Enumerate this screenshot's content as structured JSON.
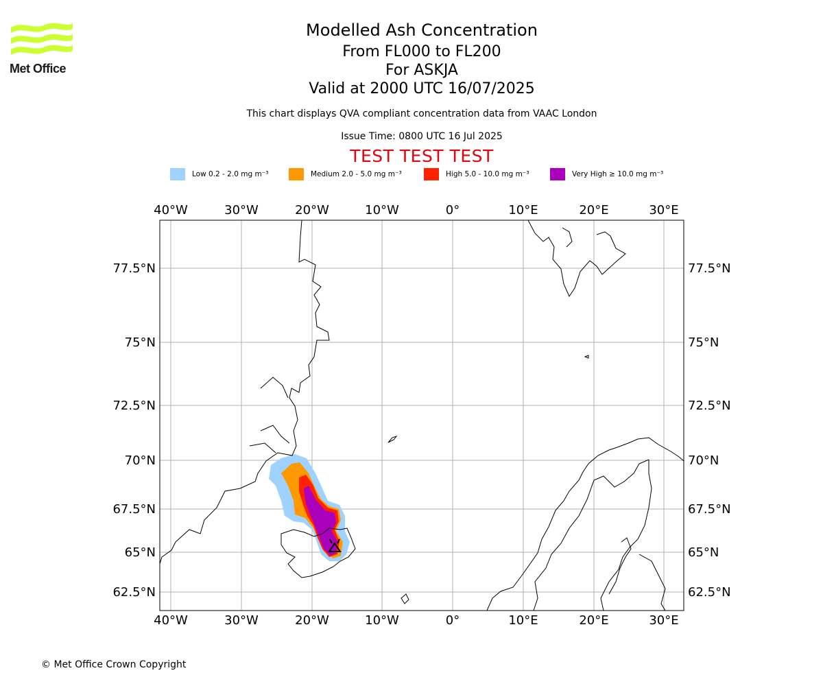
{
  "logo": {
    "text": "Met Office",
    "color": "#ccff33"
  },
  "title": {
    "line1": "Modelled Ash Concentration",
    "line2": "From FL000 to FL200",
    "line3": "For ASKJA",
    "line4": "Valid at 2000 UTC 16/07/2025"
  },
  "subtitle": "This chart displays QVA compliant concentration data from VAAC London",
  "issue_time": "Issue Time: 0800 UTC 16 Jul 2025",
  "test_banner": "TEST TEST TEST",
  "legend": [
    {
      "label": "Low 0.2 - 2.0 mg m⁻³",
      "color": "#a0d2ff"
    },
    {
      "label": "Medium 2.0 - 5.0 mg m⁻³",
      "color": "#ff9900"
    },
    {
      "label": "High 5.0 - 10.0 mg m⁻³",
      "color": "#ff2200"
    },
    {
      "label": "Very High ≥ 10.0 mg m⁻³",
      "color": "#aa00bb"
    }
  ],
  "map": {
    "lon_ticks": [
      "40°W",
      "30°W",
      "20°W",
      "10°W",
      "0°",
      "10°E",
      "20°E",
      "30°E"
    ],
    "lat_ticks": [
      "77.5°N",
      "75°N",
      "72.5°N",
      "70°N",
      "67.5°N",
      "65°N",
      "62.5°N"
    ],
    "volcano": "ASKJA"
  },
  "copyright": "© Met Office Crown Copyright"
}
